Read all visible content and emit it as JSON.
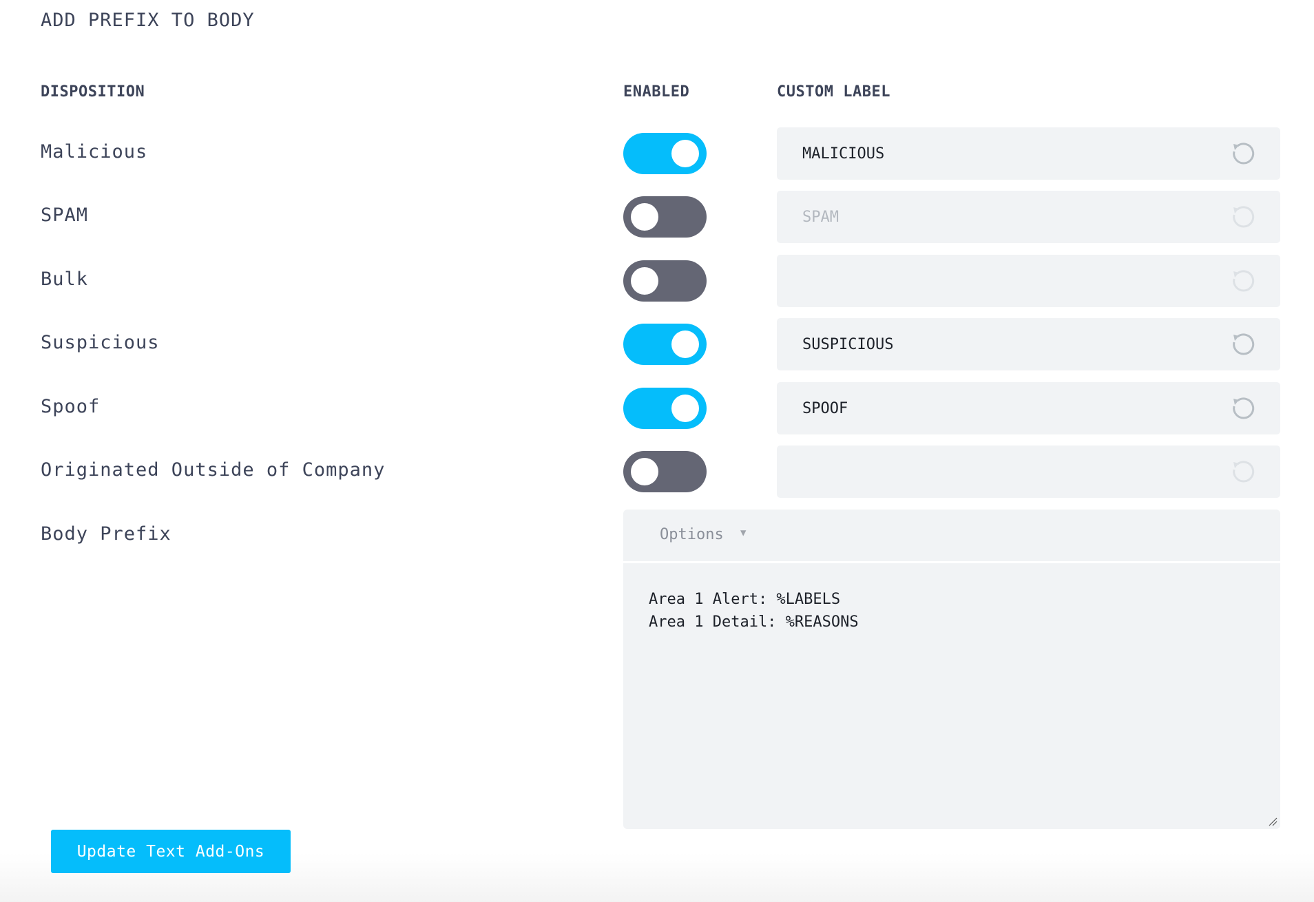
{
  "title": "ADD PREFIX TO BODY",
  "headers": {
    "disposition": "DISPOSITION",
    "enabled": "ENABLED",
    "custom_label": "CUSTOM LABEL"
  },
  "colors": {
    "toggle_on": "#05bdfb",
    "toggle_off": "#646674",
    "button": "#05bdfb"
  },
  "rows": [
    {
      "label": "Malicious",
      "enabled": true,
      "custom_label": "MALICIOUS"
    },
    {
      "label": "SPAM",
      "enabled": false,
      "custom_label": "SPAM"
    },
    {
      "label": "Bulk",
      "enabled": false,
      "custom_label": ""
    },
    {
      "label": "Suspicious",
      "enabled": true,
      "custom_label": "SUSPICIOUS"
    },
    {
      "label": "Spoof",
      "enabled": true,
      "custom_label": "SPOOF"
    },
    {
      "label": "Originated Outside of Company",
      "enabled": false,
      "custom_label": ""
    }
  ],
  "body_prefix": {
    "label": "Body Prefix",
    "options_label": "Options",
    "lines": [
      "Area 1 Alert: %LABELS",
      "Area 1 Detail: %REASONS"
    ]
  },
  "update_button": "Update Text Add-Ons",
  "icons": {
    "reset": "reset-icon",
    "dropdown": "caret-down-icon"
  }
}
